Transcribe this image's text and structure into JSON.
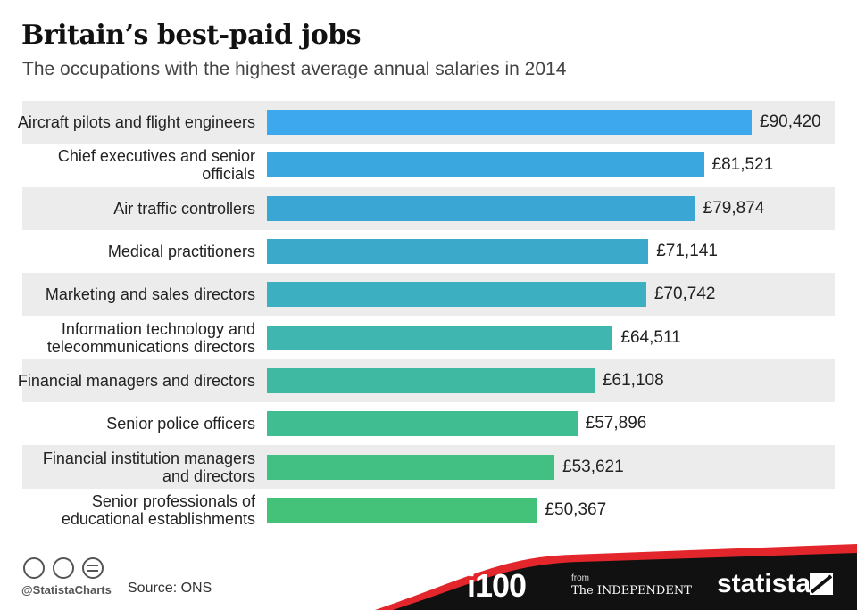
{
  "chart_data": {
    "type": "bar",
    "orientation": "horizontal",
    "title": "Britain’s best-paid jobs",
    "subtitle": "The occupations with the highest average annual salaries in 2014",
    "categories": [
      "Aircraft pilots and flight engineers",
      "Chief executives and senior officials",
      "Air traffic controllers",
      "Medical practitioners",
      "Marketing and sales directors",
      "Information technology and telecommunications directors",
      "Financial managers and directors",
      "Senior police officers",
      "Financial institution managers and directors",
      "Senior professionals of educational establishments"
    ],
    "values": [
      90420,
      81521,
      79874,
      71141,
      70742,
      64511,
      61108,
      57896,
      53621,
      50367
    ],
    "value_labels": [
      "£90,420",
      "£81,521",
      "£79,874",
      "£71,141",
      "£70,742",
      "£64,511",
      "£61,108",
      "£57,896",
      "£53,621",
      "£50,367"
    ],
    "colors": [
      "#3ea8ee",
      "#3aa7df",
      "#3aa6d4",
      "#3ba9c9",
      "#3cafc0",
      "#3fb6b0",
      "#40b9a2",
      "#41bd92",
      "#42c084",
      "#45c27a"
    ]
  },
  "footer": {
    "handle": "@StatistaCharts",
    "source": "Source: ONS",
    "brand": "i100",
    "from": "from",
    "paper": "The INDEPENDENT",
    "logo": "statista"
  }
}
